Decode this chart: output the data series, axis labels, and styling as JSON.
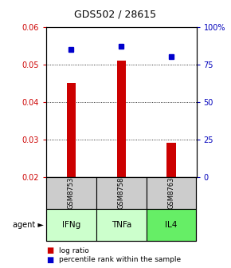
{
  "title": "GDS502 / 28615",
  "categories": [
    "IFNg",
    "TNFa",
    "IL4"
  ],
  "gsm_labels": [
    "GSM8753",
    "GSM8758",
    "GSM8763"
  ],
  "log_ratio": [
    0.045,
    0.051,
    0.029
  ],
  "percentile_rank": [
    85,
    87,
    80
  ],
  "bar_color": "#cc0000",
  "square_color": "#0000cc",
  "ylim_left": [
    0.02,
    0.06
  ],
  "ylim_right": [
    0,
    100
  ],
  "yticks_left": [
    0.02,
    0.03,
    0.04,
    0.05,
    0.06
  ],
  "yticks_right": [
    0,
    25,
    50,
    75,
    100
  ],
  "ytick_labels_left": [
    "0.02",
    "0.03",
    "0.04",
    "0.05",
    "0.06"
  ],
  "ytick_labels_right": [
    "0",
    "25",
    "50",
    "75",
    "100%"
  ],
  "left_tick_color": "#cc0000",
  "right_tick_color": "#0000bb",
  "grid_color": "black",
  "gray_box_color": "#cccccc",
  "green_light": "#ccffcc",
  "green_bright": "#66ee66",
  "agent_label": "agent",
  "bar_width": 0.18,
  "pct_values_mapped": [
    0.054,
    0.055,
    0.052
  ]
}
